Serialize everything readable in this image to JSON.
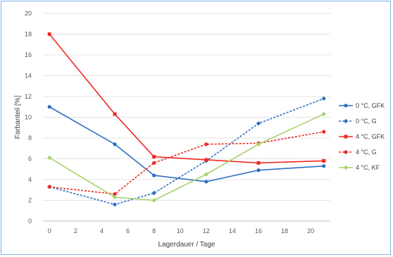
{
  "chart_data": {
    "type": "line",
    "title": "",
    "xlabel": "Lagerdauer / Tage",
    "ylabel": "Farbanteil [%]",
    "xlim": [
      -0.5,
      21.5
    ],
    "ylim": [
      0,
      20
    ],
    "xticks": [
      0,
      2,
      4,
      6,
      8,
      10,
      12,
      14,
      16,
      18,
      20
    ],
    "yticks": [
      0,
      2,
      4,
      6,
      8,
      10,
      12,
      14,
      16,
      18,
      20
    ],
    "grid": "horizontal",
    "legend_position": "right",
    "x": [
      0,
      5,
      8,
      12,
      16,
      21
    ],
    "series": [
      {
        "name": "0 °C, GFK",
        "color": "#2e6fc4",
        "dash": "solid",
        "marker": "circle",
        "values": [
          11.0,
          7.4,
          4.4,
          3.8,
          4.9,
          5.3
        ]
      },
      {
        "name": "0 °C, G",
        "color": "#2e6fc4",
        "dash": "dashed",
        "marker": "diamond",
        "values": [
          3.3,
          1.6,
          2.7,
          5.8,
          9.4,
          11.8
        ]
      },
      {
        "name": "4 °C, GFK",
        "color": "#ee2a24",
        "dash": "solid",
        "marker": "square",
        "values": [
          18.0,
          10.3,
          6.2,
          5.9,
          5.6,
          5.8
        ]
      },
      {
        "name": "4 °C, G",
        "color": "#ee2a24",
        "dash": "dashed",
        "marker": "circle",
        "values": [
          3.3,
          2.6,
          5.6,
          7.4,
          7.5,
          8.6
        ]
      },
      {
        "name": "4 °C, KF",
        "color": "#a9d26a",
        "dash": "solid",
        "marker": "diamond",
        "values": [
          6.1,
          2.3,
          2.0,
          4.5,
          7.4,
          10.3
        ]
      }
    ]
  }
}
